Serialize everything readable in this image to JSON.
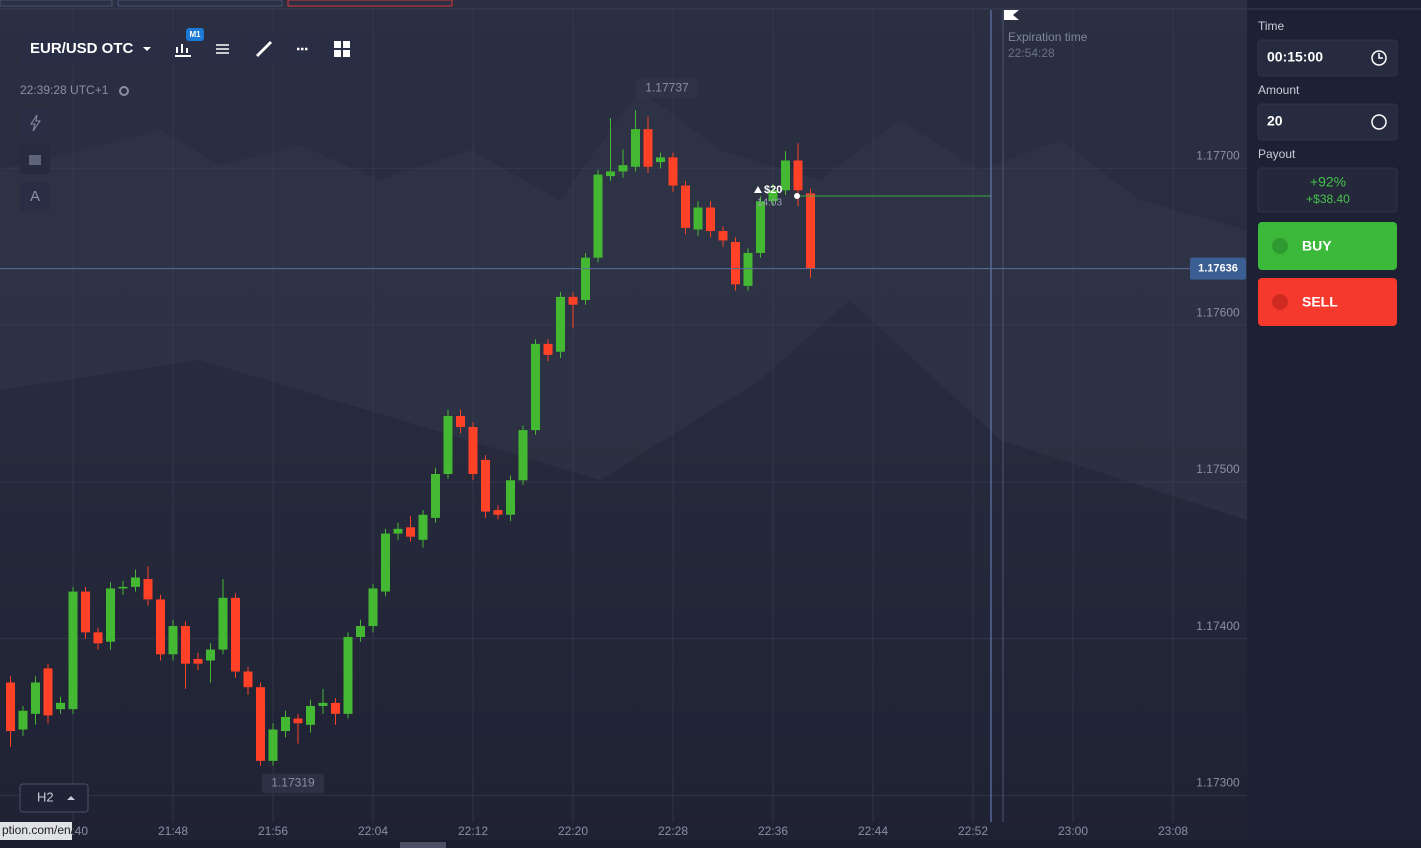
{
  "toolbar": {
    "asset": "EUR/USD OTC",
    "timeframe_badge": "M1",
    "clock": "22:39:28 UTC+1",
    "text_tool": "A",
    "period": "H2"
  },
  "status_url": "ption.com/en/",
  "trade": {
    "amount": "$20",
    "timer": "14:03"
  },
  "expiration": {
    "label": "Expiration time",
    "time": "22:54:28"
  },
  "panel": {
    "time_label": "Time",
    "time_value": "00:15:00",
    "amount_label": "Amount",
    "amount_value": "20",
    "payout_label": "Payout",
    "payout_percent": "+92%",
    "payout_amount": "+$38.40",
    "buy": "BUY",
    "sell": "SELL"
  },
  "chart_data": {
    "type": "candlestick",
    "open": [
      1.17372,
      1.17342,
      1.17352,
      1.17381,
      1.17355,
      1.17355,
      1.1743,
      1.17404,
      1.17398,
      1.17432,
      1.17433,
      1.17438,
      1.17425,
      1.1739,
      1.17408,
      1.17387,
      1.17386,
      1.17393,
      1.17426,
      1.17379,
      1.17369,
      1.17322,
      1.17341,
      1.17349,
      1.17345,
      1.17357,
      1.17359,
      1.17352,
      1.17401,
      1.17408,
      1.1743,
      1.17467,
      1.17471,
      1.17463,
      1.17477,
      1.17505,
      1.17542,
      1.17535,
      1.17514,
      1.17482,
      1.17479,
      1.17501,
      1.17533,
      1.17588,
      1.17583,
      1.17618,
      1.17616,
      1.17643,
      1.17695,
      1.17698,
      1.17701,
      1.17725,
      1.17704,
      1.17707,
      1.17689,
      1.17661,
      1.17675,
      1.1766,
      1.17653,
      1.17625,
      1.17646,
      1.17679,
      1.17686,
      1.17705,
      1.17684
    ],
    "high": [
      1.17376,
      1.17357,
      1.17376,
      1.17384,
      1.17363,
      1.17433,
      1.17433,
      1.17407,
      1.17436,
      1.17437,
      1.17444,
      1.17446,
      1.17428,
      1.17412,
      1.17411,
      1.17391,
      1.17397,
      1.17438,
      1.17429,
      1.17382,
      1.17372,
      1.17346,
      1.17354,
      1.17352,
      1.17361,
      1.17368,
      1.17362,
      1.17404,
      1.17412,
      1.17435,
      1.1747,
      1.17474,
      1.17478,
      1.17482,
      1.17509,
      1.17546,
      1.17546,
      1.17538,
      1.17517,
      1.17485,
      1.17504,
      1.17536,
      1.17591,
      1.17591,
      1.17621,
      1.17621,
      1.17646,
      1.17699,
      1.17732,
      1.17712,
      1.17737,
      1.17733,
      1.1771,
      1.1771,
      1.17692,
      1.17679,
      1.17679,
      1.17663,
      1.17656,
      1.17649,
      1.17682,
      1.1769,
      1.17711,
      1.17716,
      1.17687
    ],
    "low": [
      1.17331,
      1.17338,
      1.17345,
      1.17346,
      1.17352,
      1.17352,
      1.174,
      1.17393,
      1.17393,
      1.17428,
      1.1743,
      1.17421,
      1.17386,
      1.17386,
      1.17368,
      1.1738,
      1.17372,
      1.1739,
      1.17375,
      1.17364,
      1.17319,
      1.17319,
      1.17337,
      1.17333,
      1.1734,
      1.17352,
      1.17345,
      1.17349,
      1.17398,
      1.17404,
      1.17427,
      1.17463,
      1.17462,
      1.17458,
      1.17474,
      1.17502,
      1.17531,
      1.17501,
      1.17477,
      1.17476,
      1.17475,
      1.17498,
      1.1753,
      1.17577,
      1.17579,
      1.17598,
      1.17613,
      1.1764,
      1.17692,
      1.17694,
      1.17698,
      1.17697,
      1.177,
      1.17685,
      1.17658,
      1.17657,
      1.17656,
      1.1765,
      1.17622,
      1.17622,
      1.17643,
      1.17676,
      1.17683,
      1.17676,
      1.1763
    ],
    "close": [
      1.17341,
      1.17354,
      1.17372,
      1.17351,
      1.17359,
      1.1743,
      1.17404,
      1.17397,
      1.17432,
      1.17433,
      1.17439,
      1.17425,
      1.1739,
      1.17408,
      1.17384,
      1.17384,
      1.17393,
      1.17426,
      1.17379,
      1.17369,
      1.17322,
      1.17342,
      1.1735,
      1.17346,
      1.17357,
      1.17359,
      1.17352,
      1.17401,
      1.17408,
      1.17432,
      1.17467,
      1.1747,
      1.17465,
      1.17479,
      1.17505,
      1.17542,
      1.17535,
      1.17505,
      1.17481,
      1.17479,
      1.17501,
      1.17533,
      1.17588,
      1.17581,
      1.17618,
      1.17613,
      1.17643,
      1.17696,
      1.17698,
      1.17702,
      1.17725,
      1.17701,
      1.17707,
      1.17689,
      1.17662,
      1.17675,
      1.1766,
      1.17654,
      1.17626,
      1.17646,
      1.17679,
      1.17686,
      1.17705,
      1.17686,
      1.17636
    ],
    "up_color": "#45b833",
    "down_color": "#ff4128",
    "ylim": [
      1.17283,
      1.17801
    ],
    "yticks": [
      {
        "value": 1.177,
        "label": "1.17700"
      },
      {
        "value": 1.176,
        "label": "1.17600"
      },
      {
        "value": 1.175,
        "label": "1.17500"
      },
      {
        "value": 1.174,
        "label": "1.17400"
      },
      {
        "value": 1.173,
        "label": "1.17300"
      }
    ],
    "xticks": [
      "21:40",
      "21:48",
      "21:56",
      "22:04",
      "22:12",
      "22:20",
      "22:28",
      "22:36",
      "22:44",
      "22:52",
      "23:00",
      "23:08"
    ],
    "grid": true,
    "current_price": 1.17636,
    "high_label": 1.17737,
    "low_label": 1.17319
  }
}
